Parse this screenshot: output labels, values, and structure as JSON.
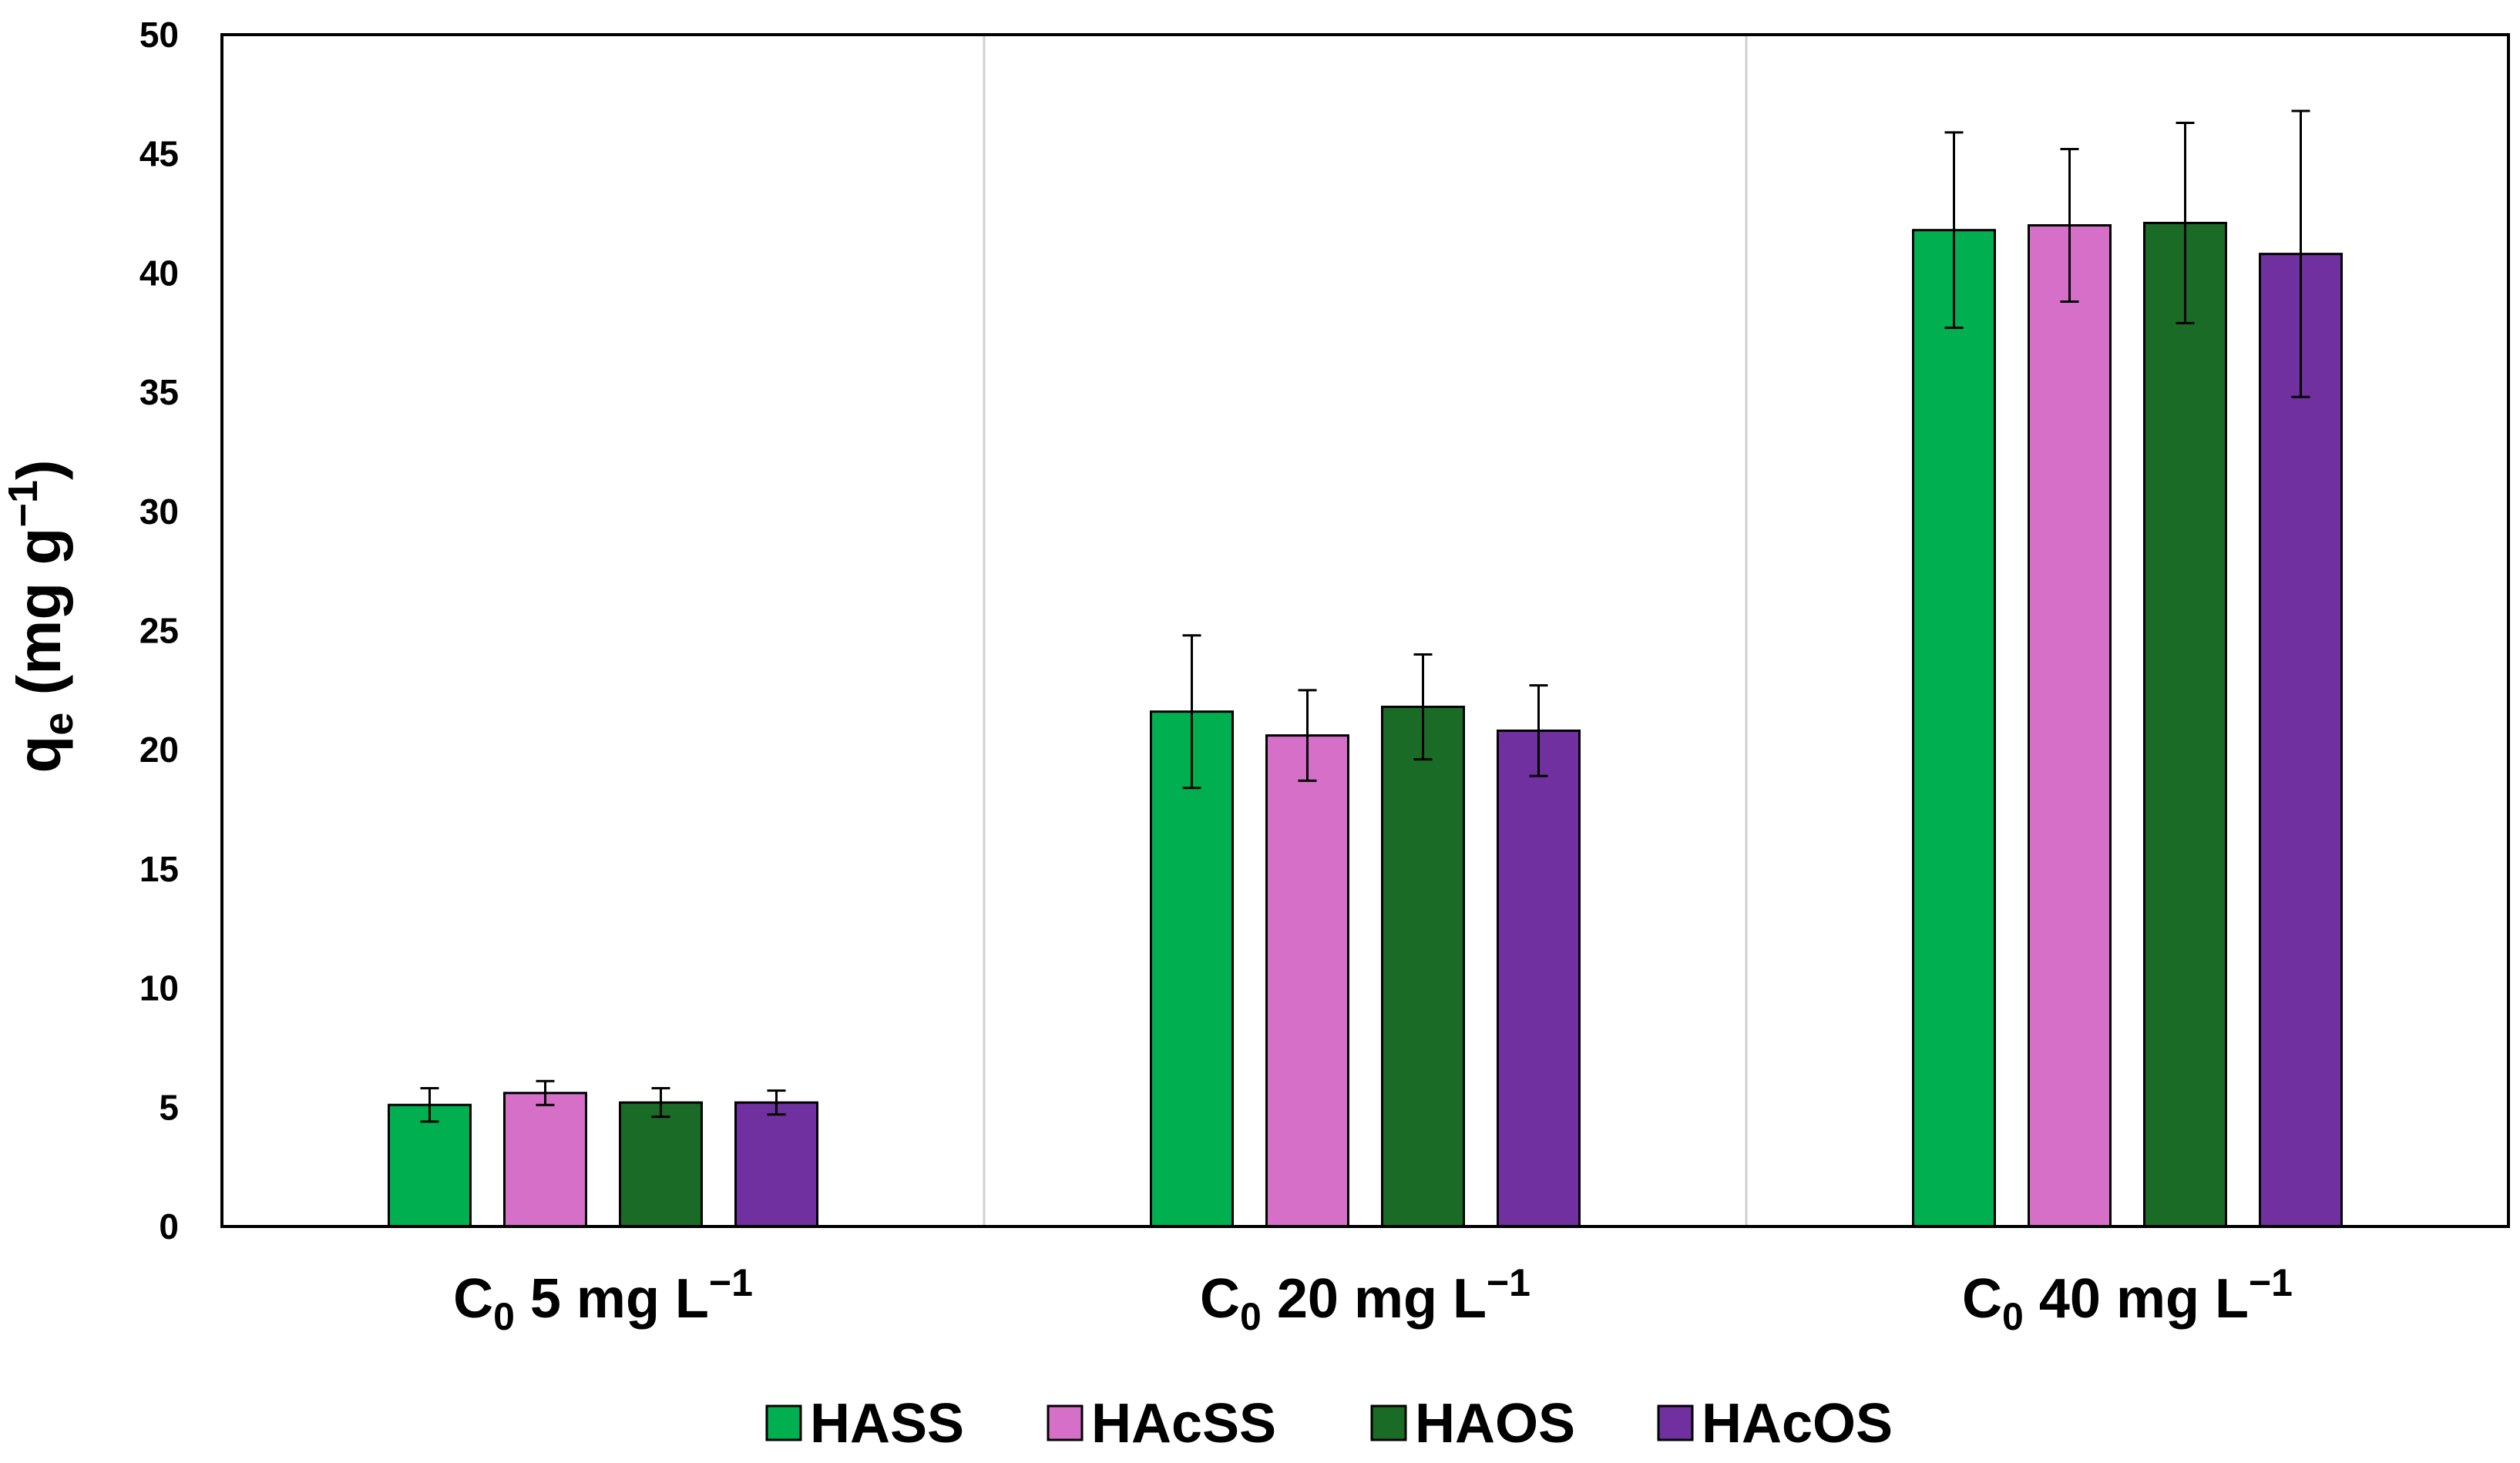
{
  "chart_data": {
    "type": "bar",
    "title": "",
    "xlabel": "",
    "ylabel": {
      "main": "q",
      "sub": "e",
      "unit_prefix": " (mg g",
      "unit_sup": "−1",
      "unit_suffix": ")"
    },
    "ylim": [
      0,
      50
    ],
    "yticks": [
      0,
      5,
      10,
      15,
      20,
      25,
      30,
      35,
      40,
      45,
      50
    ],
    "grid": false,
    "legend_position": "bottom",
    "categories": [
      {
        "prefix": "C",
        "sub": "0",
        "rest": " 5 mg L",
        "sup": "−1"
      },
      {
        "prefix": "C",
        "sub": "0",
        "rest": " 20 mg L",
        "sup": "−1"
      },
      {
        "prefix": "C",
        "sub": "0",
        "rest": " 40 mg L",
        "sup": "−1"
      }
    ],
    "series": [
      {
        "name": "HASS",
        "color": "#00b050",
        "values": [
          5.1,
          21.6,
          41.8
        ],
        "errors": [
          0.7,
          3.2,
          4.1
        ]
      },
      {
        "name": "HAcSS",
        "color": "#d66fc8",
        "values": [
          5.6,
          20.6,
          42.0
        ],
        "errors": [
          0.5,
          1.9,
          3.2
        ]
      },
      {
        "name": "HAOS",
        "color": "#1a6b26",
        "values": [
          5.2,
          21.8,
          42.1
        ],
        "errors": [
          0.6,
          2.2,
          4.2
        ]
      },
      {
        "name": "HAcOS",
        "color": "#7030a0",
        "values": [
          5.2,
          20.8,
          40.8
        ],
        "errors": [
          0.5,
          1.9,
          6.0
        ]
      }
    ]
  }
}
